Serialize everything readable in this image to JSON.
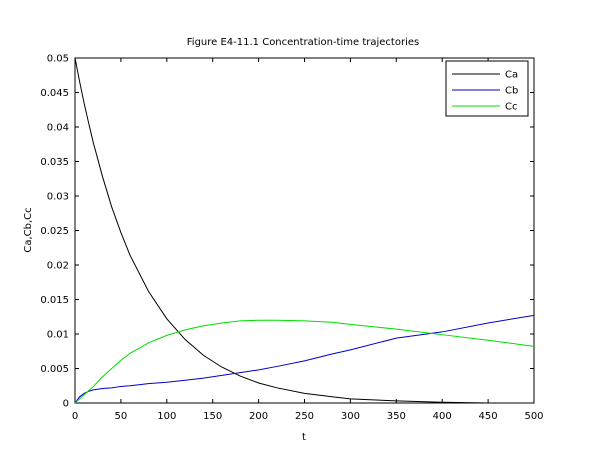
{
  "chart_data": {
    "type": "line",
    "title": "Figure E4-11.1 Concentration-time trajectories",
    "xlabel": "t",
    "ylabel": "Ca,Cb,Cc",
    "xlim": [
      0,
      500
    ],
    "ylim": [
      0,
      0.05
    ],
    "x_ticks": [
      0,
      50,
      100,
      150,
      200,
      250,
      300,
      350,
      400,
      450,
      500
    ],
    "x_tick_labels": [
      "0",
      "50",
      "100",
      "150",
      "200",
      "250",
      "300",
      "350",
      "400",
      "450",
      "500"
    ],
    "y_ticks": [
      0,
      0.005,
      0.01,
      0.015,
      0.02,
      0.025,
      0.03,
      0.035,
      0.04,
      0.045,
      0.05
    ],
    "y_tick_labels": [
      "0",
      "0.005",
      "0.01",
      "0.015",
      "0.02",
      "0.025",
      "0.03",
      "0.035",
      "0.04",
      "0.045",
      "0.05"
    ],
    "grid": false,
    "legend_position": "top-right",
    "x": [
      0,
      5,
      10,
      15,
      20,
      30,
      40,
      50,
      60,
      80,
      100,
      120,
      140,
      160,
      180,
      200,
      220,
      250,
      280,
      300,
      350,
      400,
      450,
      500
    ],
    "series": [
      {
        "name": "Ca",
        "color": "#000000",
        "values": [
          0.05,
          0.0466,
          0.0434,
          0.0405,
          0.0377,
          0.0328,
          0.0284,
          0.0247,
          0.0214,
          0.0162,
          0.0122,
          0.0092,
          0.0069,
          0.0052,
          0.0039,
          0.0029,
          0.0022,
          0.0014,
          0.0009,
          0.0006,
          0.0003,
          0.0001,
          0.0,
          0.0
        ]
      },
      {
        "name": "Cb",
        "color": "#0000cc",
        "values": [
          0.0,
          0.0009,
          0.0014,
          0.0017,
          0.0019,
          0.0021,
          0.0022,
          0.0024,
          0.0025,
          0.0028,
          0.003,
          0.0033,
          0.0036,
          0.004,
          0.0044,
          0.0048,
          0.0053,
          0.0061,
          0.0071,
          0.0077,
          0.0094,
          0.0103,
          0.0116,
          0.0127
        ]
      },
      {
        "name": "Cc",
        "color": "#00dd00",
        "values": [
          0.0,
          0.0006,
          0.0012,
          0.0018,
          0.0024,
          0.0038,
          0.005,
          0.0062,
          0.0072,
          0.0087,
          0.0098,
          0.0106,
          0.0112,
          0.0116,
          0.0119,
          0.012,
          0.012,
          0.0119,
          0.0117,
          0.0114,
          0.0107,
          0.0099,
          0.0091,
          0.0082
        ]
      }
    ]
  }
}
